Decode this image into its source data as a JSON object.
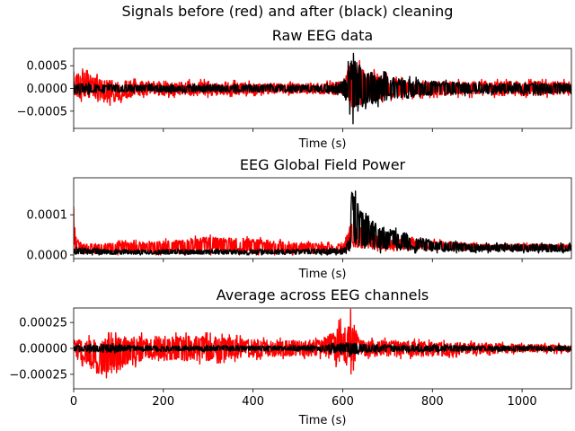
{
  "suptitle": "Signals before (red) and after (black) cleaning",
  "colors": {
    "before": "#ff0000",
    "after": "#000000"
  },
  "chart_data": [
    {
      "type": "line",
      "title": "Raw EEG data",
      "xlabel": "Time (s)",
      "ylabel": "",
      "xlim": [
        0,
        1110
      ],
      "ylim": [
        -0.00088,
        0.00088
      ],
      "xticks": [
        0,
        200,
        400,
        600,
        800,
        1000
      ],
      "show_xticklabels": false,
      "yticks": [
        -0.0005,
        0,
        0.0005
      ],
      "yticklabels": [
        "−0.0005",
        "0.0000",
        "0.0005"
      ],
      "series": [
        {
          "color": "#ff0000",
          "x": [
            0,
            70,
            150,
            300,
            430,
            550,
            600,
            618,
            640,
            660,
            720,
            800,
            900,
            1000,
            1110
          ],
          "min": [
            -0.00025,
            -0.0004,
            -0.0002,
            -0.0002,
            -0.00015,
            -0.00015,
            -0.0002,
            -0.0006,
            -0.0005,
            -0.00035,
            -0.00025,
            -0.0002,
            -0.0002,
            -0.0002,
            -0.0002
          ],
          "max": [
            0.0005,
            0.00025,
            0.0002,
            0.0002,
            0.00015,
            0.00015,
            0.0002,
            0.0007,
            0.0006,
            0.00045,
            0.00025,
            0.0002,
            0.0002,
            0.0002,
            0.0002
          ]
        },
        {
          "color": "#000000",
          "x": [
            0,
            70,
            150,
            300,
            430,
            550,
            600,
            618,
            640,
            660,
            720,
            800,
            900,
            1000,
            1110
          ],
          "min": [
            -0.00015,
            -0.0001,
            -0.0001,
            -0.0001,
            -0.0001,
            -0.0001,
            -0.00015,
            -0.0008,
            -0.0007,
            -0.00045,
            -0.0003,
            -0.0002,
            -0.00015,
            -0.00015,
            -0.00015
          ],
          "max": [
            0.00015,
            0.0001,
            0.0001,
            0.0001,
            0.0001,
            0.0001,
            0.00015,
            0.0008,
            0.0007,
            0.00045,
            0.0003,
            0.0002,
            0.00015,
            0.00015,
            0.00015
          ]
        }
      ]
    },
    {
      "type": "line",
      "title": "EEG Global Field Power",
      "xlabel": "Time (s)",
      "ylabel": "",
      "xlim": [
        0,
        1110
      ],
      "ylim": [
        -9e-06,
        0.000192
      ],
      "xticks": [
        0,
        200,
        400,
        600,
        800,
        1000
      ],
      "show_xticklabels": false,
      "yticks": [
        0,
        0.0001
      ],
      "yticklabels": [
        "0.0000",
        "0.0001"
      ],
      "series": [
        {
          "color": "#ff0000",
          "x": [
            0,
            5,
            20,
            100,
            200,
            300,
            400,
            500,
            600,
            620,
            630,
            680,
            800,
            900,
            1000,
            1110
          ],
          "min": [
            0,
            0,
            0,
            0,
            0,
            0,
            0,
            0,
            0,
            1e-05,
            1e-05,
            1e-05,
            1e-05,
            1e-05,
            1e-05,
            1e-05
          ],
          "max": [
            0.00012,
            5e-05,
            3e-05,
            3.5e-05,
            4e-05,
            5e-05,
            4.5e-05,
            3.5e-05,
            3e-05,
            9e-05,
            8e-05,
            5e-05,
            4e-05,
            3e-05,
            3e-05,
            3e-05
          ]
        },
        {
          "color": "#000000",
          "x": [
            0,
            100,
            200,
            300,
            400,
            500,
            600,
            615,
            620,
            640,
            680,
            800,
            900,
            1000,
            1110
          ],
          "min": [
            0,
            0,
            0,
            0,
            0,
            0,
            0,
            0,
            5e-06,
            5e-06,
            5e-06,
            5e-06,
            5e-06,
            5e-06,
            5e-06
          ],
          "max": [
            2e-05,
            1.5e-05,
            1.5e-05,
            1.5e-05,
            1.5e-05,
            1.5e-05,
            2e-05,
            4e-05,
            0.00018,
            0.00013,
            8e-05,
            4e-05,
            3e-05,
            3e-05,
            3e-05
          ]
        }
      ]
    },
    {
      "type": "line",
      "title": "Average across EEG channels",
      "xlabel": "Time (s)",
      "ylabel": "",
      "xlim": [
        0,
        1110
      ],
      "ylim": [
        -0.00039,
        0.00039
      ],
      "xticks": [
        0,
        200,
        400,
        600,
        800,
        1000
      ],
      "xticklabels": [
        "0",
        "200",
        "400",
        "600",
        "800",
        "1000"
      ],
      "show_xticklabels": true,
      "yticks": [
        -0.00025,
        0,
        0.00025
      ],
      "yticklabels": [
        "−0.00025",
        "0.00000",
        "0.00025"
      ],
      "series": [
        {
          "color": "#ff0000",
          "x": [
            0,
            70,
            150,
            300,
            430,
            550,
            618,
            640,
            720,
            800,
            900,
            1000,
            1110
          ],
          "min": [
            -0.0001,
            -0.00035,
            -0.00015,
            -0.00015,
            -0.0001,
            -0.0001,
            -0.00025,
            -0.0001,
            -0.0001,
            -0.0001,
            -7e-05,
            -5e-05,
            -5e-05
          ],
          "max": [
            0.0001,
            0.00015,
            0.00015,
            0.00015,
            0.0001,
            0.0001,
            0.00038,
            0.0001,
            0.0001,
            8e-05,
            7e-05,
            5e-05,
            5e-05
          ]
        },
        {
          "color": "#000000",
          "x": [
            0,
            70,
            150,
            300,
            430,
            550,
            618,
            640,
            720,
            800,
            900,
            1000,
            1110
          ],
          "min": [
            -3e-05,
            -5e-05,
            -3e-05,
            -3e-05,
            -3e-05,
            -3e-05,
            -8e-05,
            -5e-05,
            -4e-05,
            -4e-05,
            -3e-05,
            -3e-05,
            -3e-05
          ],
          "max": [
            3e-05,
            5e-05,
            3e-05,
            3e-05,
            3e-05,
            3e-05,
            8e-05,
            5e-05,
            4e-05,
            4e-05,
            3e-05,
            3e-05,
            3e-05
          ]
        }
      ]
    }
  ]
}
